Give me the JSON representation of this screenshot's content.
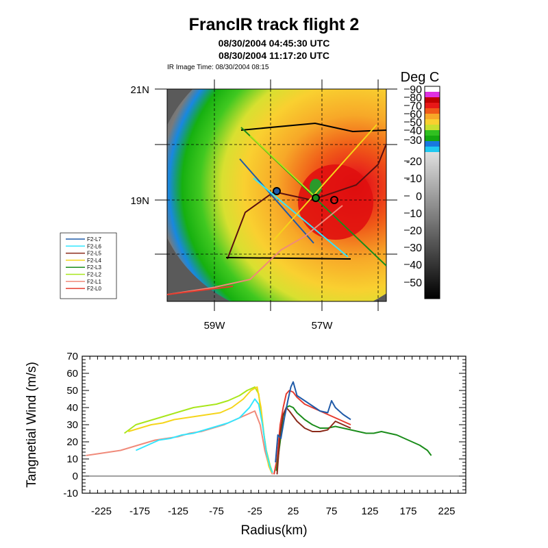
{
  "title": "FrancIR track flight 2",
  "subtitle_lines": [
    "08/30/2004 04:45:30 UTC",
    "08/30/2004 11:17:20 UTC"
  ],
  "ir_image_time": "IR Image Time: 08/30/2004 08:15",
  "colors": {
    "L7": "#1f5aa8",
    "L6": "#33e6ff",
    "L5": "#8b2a1a",
    "L4": "#f5d51a",
    "L3": "#1a8c1a",
    "L2": "#a8e61a",
    "L1": "#f08a7a",
    "L0": "#e63b2e"
  },
  "map": {
    "lat_labels": [
      "21N",
      "19N"
    ],
    "lon_labels": [
      "59W",
      "57W"
    ],
    "colorbar_title": "Deg C",
    "colorbar_labels": [
      "90",
      "80",
      "70",
      "60",
      "50",
      "40",
      "30",
      "-20",
      "-10",
      "0",
      "10",
      "20",
      "30",
      "40",
      "50"
    ],
    "legend_entries": [
      "F2-L7",
      "F2-L6",
      "F2-L5",
      "F2-L4",
      "F2-L3",
      "F2-L2",
      "F2-L1",
      "F2-L0"
    ]
  },
  "chart_data": {
    "type": "line",
    "title": "",
    "xlabel": "Radius(km)",
    "ylabel": "Tangnetial Wind (m/s)",
    "xlim": [
      -250,
      250
    ],
    "ylim": [
      -10,
      70
    ],
    "x_tick_labels": [
      "-225",
      "-175",
      "-125",
      "-75",
      "-25",
      "25",
      "75",
      "125",
      "175",
      "225"
    ],
    "x_ticks": [
      -225,
      -175,
      -125,
      -75,
      -25,
      25,
      75,
      125,
      175,
      225
    ],
    "y_tick_labels": [
      "-10",
      "0",
      "10",
      "20",
      "30",
      "40",
      "50",
      "60",
      "70"
    ],
    "y_ticks": [
      -10,
      0,
      10,
      20,
      30,
      40,
      50,
      60,
      70
    ],
    "zero_line": true,
    "series": [
      {
        "key": "L0",
        "color": "#e63b2e",
        "x": [
          0,
          4,
          8,
          12,
          16,
          20,
          25,
          30,
          40,
          50,
          60,
          70,
          80,
          90,
          100
        ],
        "y": [
          1,
          10,
          30,
          40,
          48,
          50,
          49,
          46,
          42,
          40,
          38,
          36,
          34,
          32,
          30
        ]
      },
      {
        "key": "L1",
        "color": "#f08a7a",
        "x": [
          -245,
          -230,
          -215,
          -200,
          -185,
          -170,
          -155,
          -140,
          -125,
          -110,
          -95,
          -80,
          -65,
          -50,
          -35,
          -25,
          -18,
          -12,
          -6,
          -2
        ],
        "y": [
          12,
          13,
          14,
          15,
          17,
          19,
          21,
          22,
          23,
          25,
          26,
          28,
          30,
          33,
          36,
          38,
          30,
          15,
          5,
          1
        ]
      },
      {
        "key": "L2",
        "color": "#a8e61a",
        "x": [
          -195,
          -180,
          -165,
          -150,
          -135,
          -120,
          -105,
          -90,
          -75,
          -60,
          -45,
          -35,
          -25,
          -20,
          -15,
          -10,
          -5,
          -2
        ],
        "y": [
          25,
          30,
          32,
          34,
          36,
          38,
          40,
          41,
          42,
          44,
          47,
          50,
          52,
          48,
          30,
          15,
          6,
          2
        ]
      },
      {
        "key": "L3",
        "color": "#1a8c1a",
        "x": [
          3,
          8,
          12,
          16,
          20,
          25,
          30,
          40,
          50,
          60,
          70,
          80,
          90,
          100,
          110,
          120,
          130,
          140,
          150,
          160,
          170,
          180,
          190,
          200,
          205
        ],
        "y": [
          3,
          20,
          35,
          40,
          41,
          40,
          37,
          33,
          30,
          28,
          28,
          29,
          28,
          27,
          26,
          25,
          25,
          26,
          25,
          24,
          22,
          20,
          18,
          15,
          12
        ]
      },
      {
        "key": "L4",
        "color": "#f5d51a",
        "x": [
          -190,
          -175,
          -160,
          -145,
          -130,
          -115,
          -100,
          -85,
          -70,
          -55,
          -40,
          -30,
          -22,
          -17,
          -12,
          -7,
          -3
        ],
        "y": [
          26,
          28,
          30,
          31,
          33,
          34,
          35,
          36,
          37,
          40,
          45,
          50,
          52,
          40,
          20,
          6,
          2
        ]
      },
      {
        "key": "L5",
        "color": "#8b2a1a",
        "x": [
          4,
          8,
          12,
          16,
          20,
          25,
          30,
          40,
          50,
          60,
          70,
          80,
          90,
          100
        ],
        "y": [
          1,
          25,
          36,
          40,
          38,
          35,
          32,
          28,
          26,
          26,
          27,
          32,
          30,
          28
        ]
      },
      {
        "key": "L6",
        "color": "#33e6ff",
        "x": [
          -180,
          -165,
          -150,
          -135,
          -120,
          -105,
          -90,
          -75,
          -60,
          -45,
          -32,
          -25,
          -20,
          -15,
          -10,
          -5,
          -2
        ],
        "y": [
          15,
          18,
          21,
          22,
          24,
          25,
          27,
          29,
          31,
          34,
          40,
          45,
          42,
          30,
          14,
          5,
          2
        ]
      },
      {
        "key": "L7",
        "color": "#1f5aa8",
        "x": [
          2,
          5,
          9,
          14,
          18,
          22,
          25,
          30,
          40,
          50,
          60,
          70,
          75,
          80,
          90,
          100
        ],
        "y": [
          8,
          24,
          22,
          35,
          44,
          52,
          55,
          47,
          44,
          41,
          38,
          37,
          44,
          40,
          36,
          33
        ]
      }
    ]
  }
}
